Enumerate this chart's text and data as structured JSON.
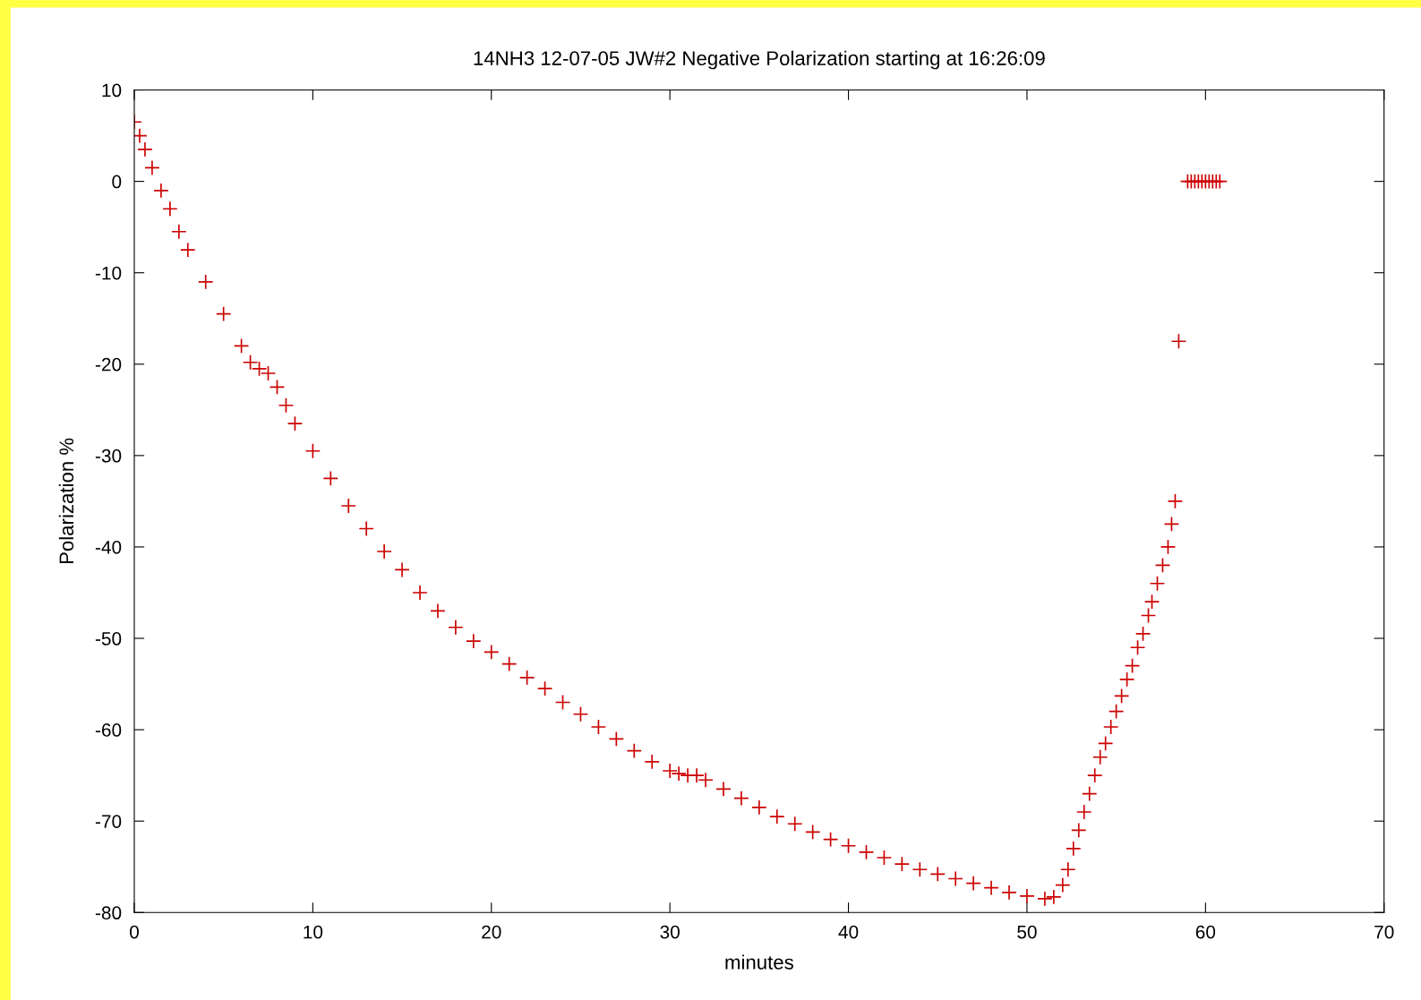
{
  "chart_data": {
    "type": "scatter",
    "title": "14NH3 12-07-05 JW#2 Negative Polarization starting at 16:26:09",
    "xlabel": "minutes",
    "ylabel": "Polarization %",
    "xlim": [
      0,
      70
    ],
    "xticks": [
      0,
      10,
      20,
      30,
      40,
      50,
      60,
      70
    ],
    "ylim": [
      -80,
      10
    ],
    "yticks": [
      -80,
      -70,
      -60,
      -50,
      -40,
      -30,
      -20,
      -10,
      0,
      10
    ],
    "grid": false,
    "marker": "cross",
    "series": [
      {
        "color": "#cc0000",
        "x": [
          0,
          0.3,
          0.6,
          1,
          1.5,
          2,
          2.5,
          3,
          4,
          5,
          6,
          6.5,
          7,
          7.5,
          8,
          8.5,
          9,
          10,
          11,
          12,
          13,
          14,
          15,
          16,
          17,
          18,
          19,
          20,
          21,
          22,
          23,
          24,
          25,
          26,
          27,
          28,
          29,
          30,
          30.5,
          31,
          31.5,
          32,
          33,
          34,
          35,
          36,
          37,
          38,
          39,
          40,
          41,
          42,
          43,
          44,
          45,
          46,
          47,
          48,
          49,
          50,
          51,
          51.5,
          52,
          52.3,
          52.6,
          52.9,
          53.2,
          53.5,
          53.8,
          54.1,
          54.4,
          54.7,
          55,
          55.3,
          55.6,
          55.9,
          56.2,
          56.5,
          56.8,
          57,
          57.3,
          57.6,
          57.9,
          58.1,
          58.3,
          58.5,
          59,
          59.2,
          59.4,
          59.6,
          59.8,
          60,
          60.2,
          60.4,
          60.6,
          60.8
        ],
        "values": [
          6.5,
          5,
          3.5,
          1.5,
          -1,
          -3,
          -5.5,
          -7.5,
          -11,
          -14.5,
          -18,
          -19.8,
          -20.5,
          -21,
          -22.5,
          -24.5,
          -26.5,
          -29.5,
          -32.5,
          -35.5,
          -38,
          -40.5,
          -42.5,
          -45,
          -47,
          -48.8,
          -50.3,
          -51.5,
          -52.8,
          -54.3,
          -55.5,
          -57,
          -58.3,
          -59.7,
          -61,
          -62.3,
          -63.5,
          -64.5,
          -64.8,
          -65,
          -65,
          -65.5,
          -66.5,
          -67.5,
          -68.5,
          -69.5,
          -70.3,
          -71.2,
          -72,
          -72.7,
          -73.4,
          -74,
          -74.7,
          -75.3,
          -75.8,
          -76.3,
          -76.8,
          -77.3,
          -77.8,
          -78.2,
          -78.5,
          -78.3,
          -77,
          -75.3,
          -73,
          -71,
          -69,
          -67,
          -65,
          -63,
          -61.5,
          -59.7,
          -58,
          -56.3,
          -54.5,
          -53,
          -51,
          -49.5,
          -47.5,
          -46,
          -44,
          -42,
          -40,
          -37.5,
          -35,
          -17.5,
          0,
          0,
          0,
          0,
          0,
          0,
          0,
          0,
          0,
          0
        ]
      }
    ]
  }
}
